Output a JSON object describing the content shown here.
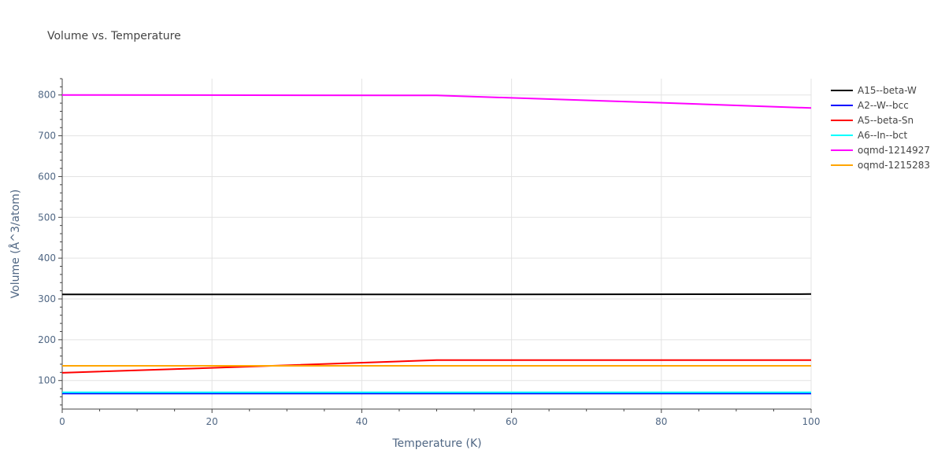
{
  "chart_data": {
    "type": "line",
    "title": "Volume vs. Temperature",
    "xlabel": "Temperature (K)",
    "ylabel": "Volume (Å^3/atom)",
    "xlim": [
      0,
      100
    ],
    "ylim": [
      30,
      840
    ],
    "xticks": [
      0,
      20,
      40,
      60,
      80,
      100
    ],
    "yticks": [
      100,
      200,
      300,
      400,
      500,
      600,
      700,
      800
    ],
    "grid": true,
    "legend_position": "right",
    "series": [
      {
        "name": "A15--beta-W",
        "color": "#000000",
        "x": [
          0,
          50,
          100
        ],
        "y": [
          311,
          311,
          312
        ]
      },
      {
        "name": "A2--W--bcc",
        "color": "#0000ff",
        "x": [
          0,
          50,
          100
        ],
        "y": [
          68,
          68,
          68
        ]
      },
      {
        "name": "A5--beta-Sn",
        "color": "#ff0000",
        "x": [
          0,
          20,
          50,
          100
        ],
        "y": [
          119,
          131,
          150,
          150
        ]
      },
      {
        "name": "A6--In--bct",
        "color": "#00ffff",
        "x": [
          0,
          50,
          100
        ],
        "y": [
          71,
          71,
          71
        ]
      },
      {
        "name": "oqmd-1214927",
        "color": "#ff00ff",
        "x": [
          0,
          50,
          60,
          80,
          100
        ],
        "y": [
          800,
          799,
          793,
          781,
          768
        ]
      },
      {
        "name": "oqmd-1215283",
        "color": "#ffa500",
        "x": [
          0,
          50,
          100
        ],
        "y": [
          136,
          136,
          136
        ]
      }
    ]
  }
}
